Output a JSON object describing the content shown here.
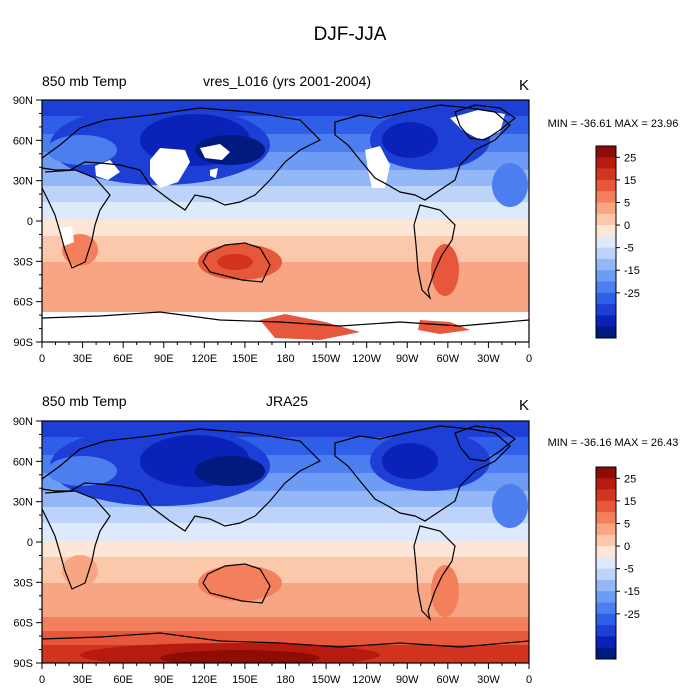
{
  "figure": {
    "title": "DJF-JJA"
  },
  "palette": [
    "#001a80",
    "#0a22b8",
    "#1d3fd6",
    "#2f5ee8",
    "#4d7ef0",
    "#6e9cf4",
    "#94b8f7",
    "#bdd3fa",
    "#dceafc",
    "#fde6d6",
    "#fcc8ac",
    "#f8a583",
    "#f37f5d",
    "#e6573b",
    "#d3341f",
    "#b71b10",
    "#8e0c06"
  ],
  "colorbar_labels": [
    "25",
    "15",
    "5",
    "0",
    "-5",
    "-15",
    "-25"
  ],
  "x_ticks": [
    "0",
    "30E",
    "60E",
    "90E",
    "120E",
    "150E",
    "180",
    "150W",
    "120W",
    "90W",
    "60W",
    "30W",
    "0"
  ],
  "y_ticks": [
    "90N",
    "60N",
    "30N",
    "0",
    "30S",
    "60S",
    "90S"
  ],
  "panels": [
    {
      "id": "model",
      "left_label": "850 mb Temp",
      "center_label": "vres_L016 (yrs 2001-2004)",
      "units": "K",
      "minmax": "MIN = -36.61 MAX =  23.96",
      "stats": {
        "min": -36.61,
        "max": 23.96
      }
    },
    {
      "id": "reanalysis",
      "left_label": "850 mb Temp",
      "center_label": "JRA25",
      "units": "K",
      "minmax": "MIN = -36.16 MAX =  26.43",
      "stats": {
        "min": -36.16,
        "max": 26.43
      }
    }
  ]
}
